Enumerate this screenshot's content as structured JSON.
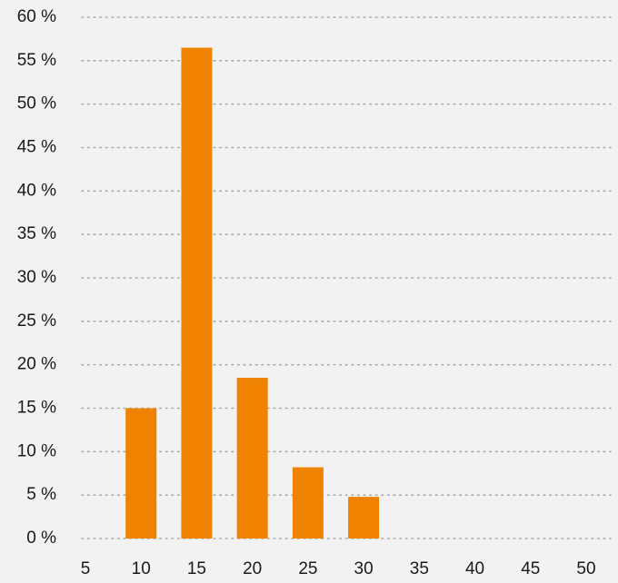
{
  "chart_data": {
    "type": "bar",
    "x": [
      10,
      15,
      20,
      25,
      30
    ],
    "values": [
      15,
      56.5,
      18.5,
      8.2,
      4.8
    ],
    "ylim": [
      0,
      60
    ],
    "xlim": [
      5,
      50
    ],
    "y_ticks": [
      0,
      5,
      10,
      15,
      20,
      25,
      30,
      35,
      40,
      45,
      50,
      55,
      60
    ],
    "y_tick_labels": [
      "0 %",
      "5 %",
      "10 %",
      "15 %",
      "20 %",
      "25 %",
      "30 %",
      "35 %",
      "40 %",
      "45 %",
      "50 %",
      "55 %",
      "60 %"
    ],
    "x_ticks": [
      5,
      10,
      15,
      20,
      25,
      30,
      35,
      40,
      45,
      50
    ],
    "x_tick_labels": [
      "5",
      "10",
      "15",
      "20",
      "25",
      "30",
      "35",
      "40",
      "45",
      "50"
    ],
    "grid": "horizontal dotted",
    "colors": {
      "bar": "#ef8200",
      "background": "#f2f2f2",
      "grid": "#a9a9a9",
      "text": "#1a1a1a"
    }
  }
}
